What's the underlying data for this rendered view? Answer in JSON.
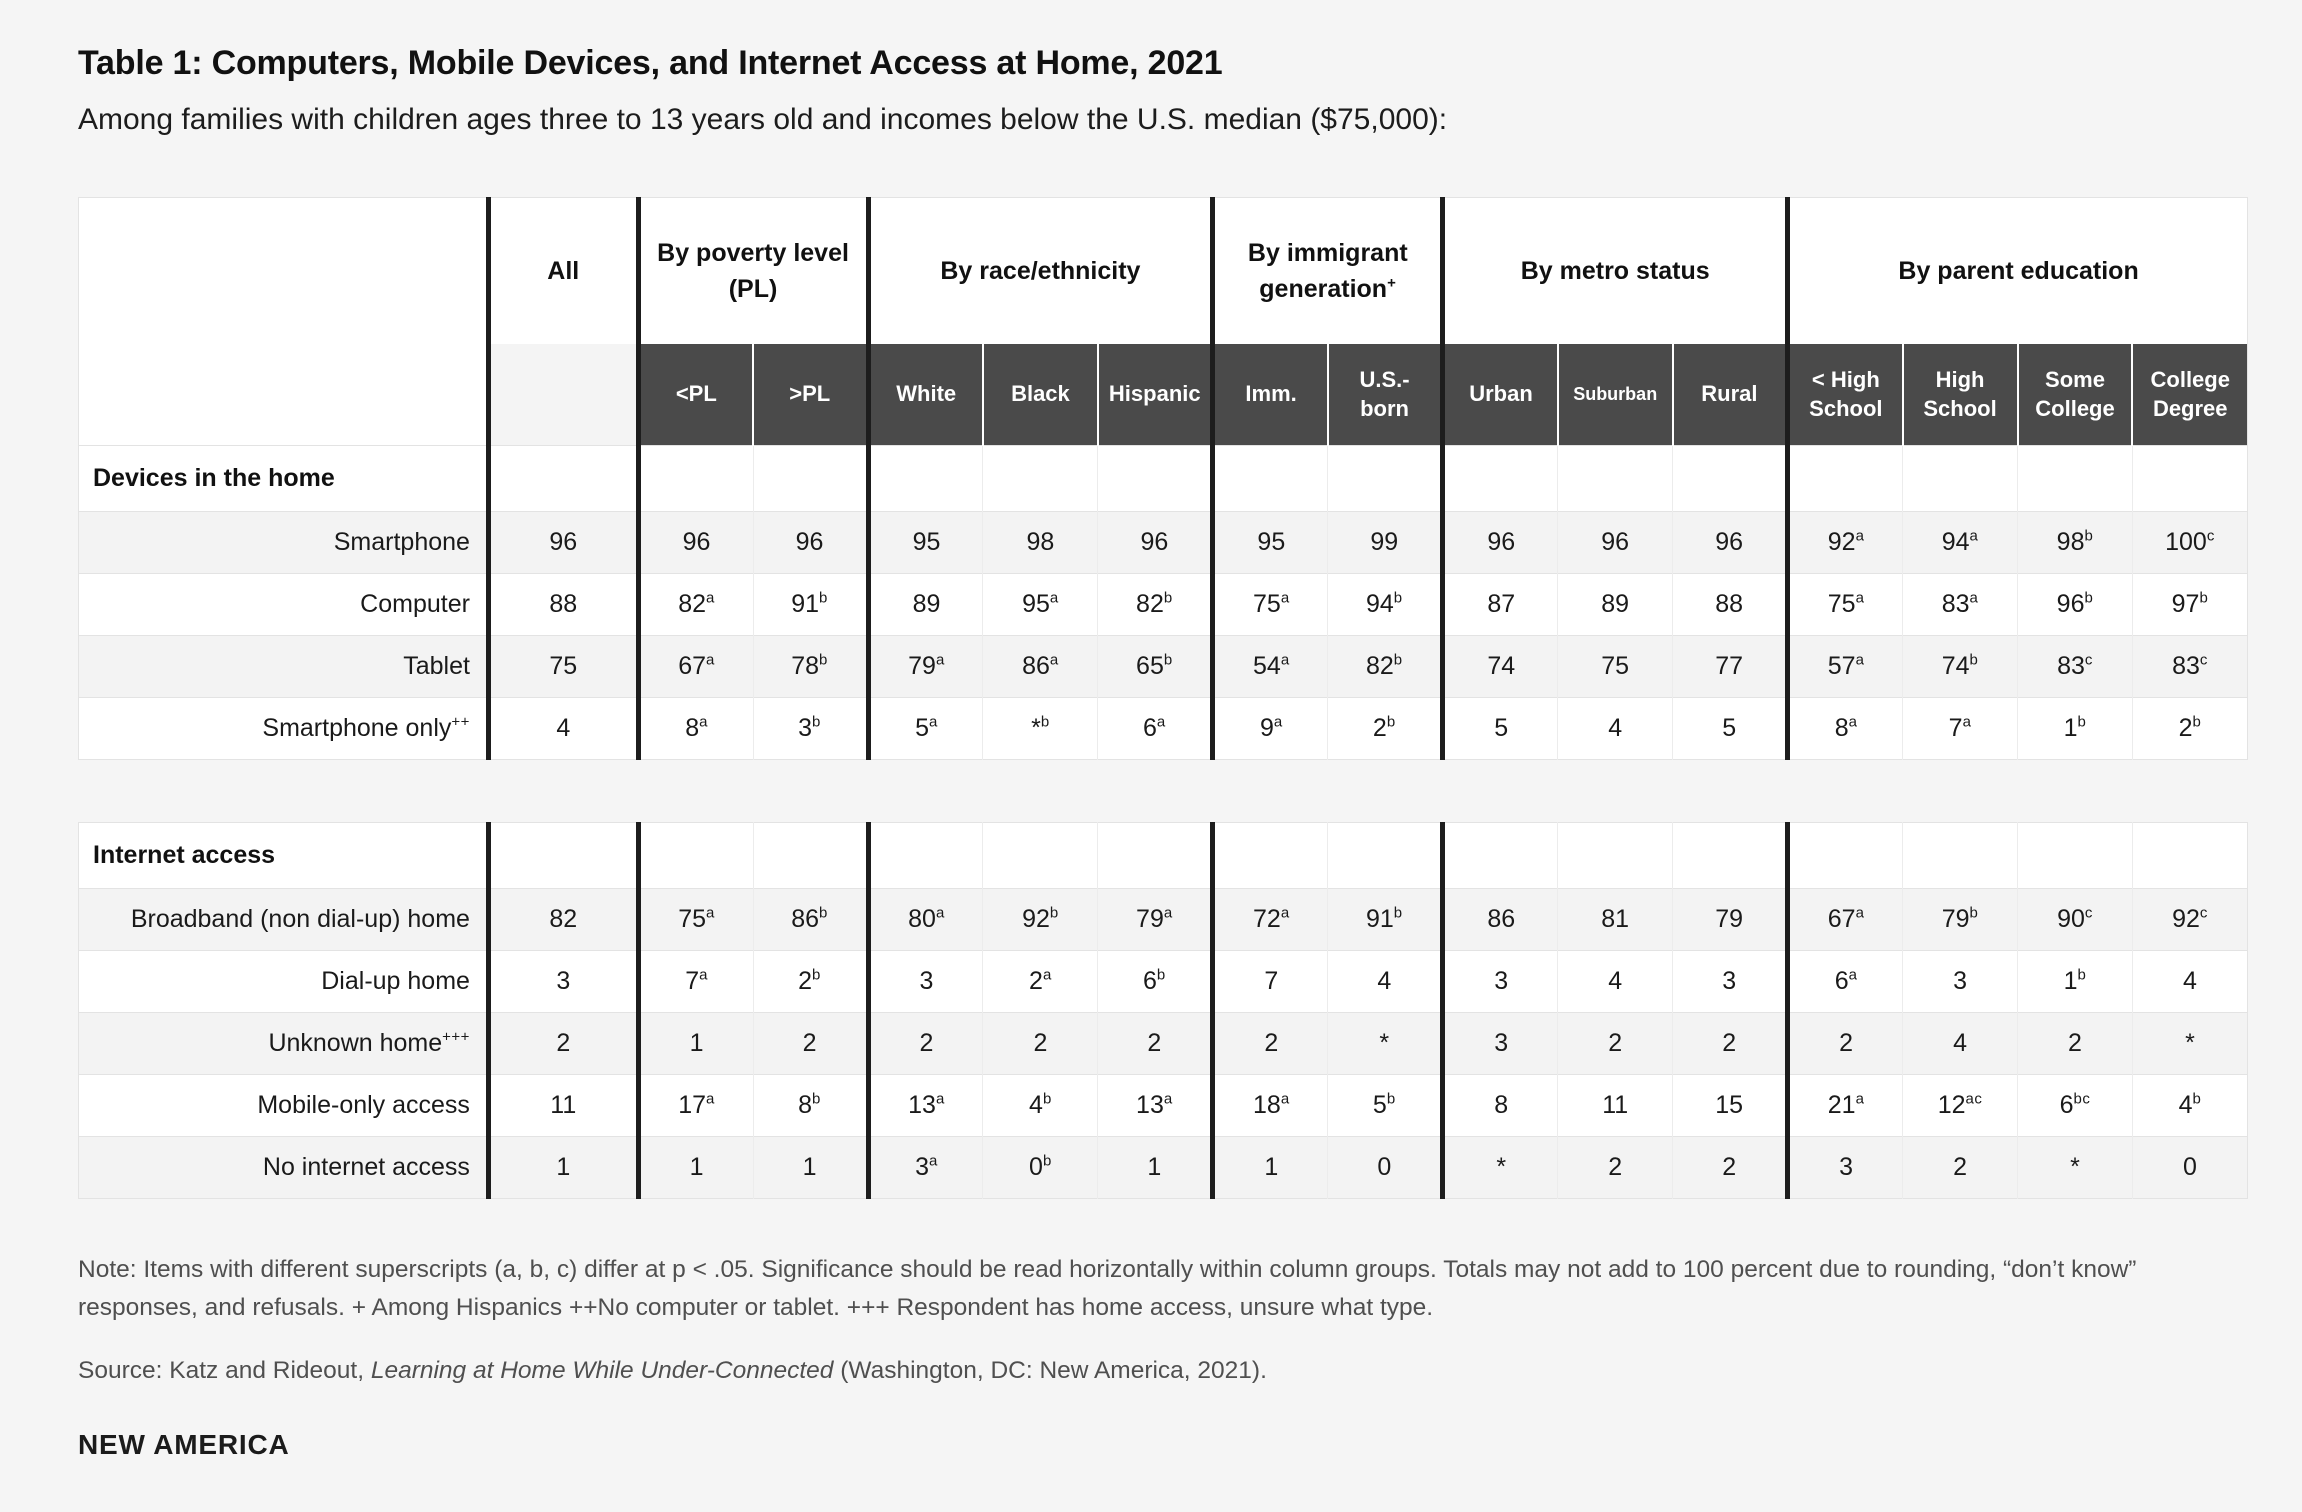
{
  "chart_data": {
    "type": "table",
    "title": "Table 1: Computers, Mobile Devices, and Internet Access at Home, 2021",
    "subtitle": "Among families with children ages three to 13 years old and incomes below the U.S. median ($75,000):",
    "column_groups": [
      {
        "label": "All",
        "span": 1
      },
      {
        "label": "By poverty level (PL)",
        "span": 2
      },
      {
        "label": "By race/ethnicity",
        "span": 3
      },
      {
        "label": "By immigrant generation^+",
        "span": 2
      },
      {
        "label": "By metro status",
        "span": 3
      },
      {
        "label": "By parent education",
        "span": 4
      }
    ],
    "columns": [
      "All",
      "<PL",
      ">PL",
      "White",
      "Black",
      "Hispanic",
      "Imm.",
      "U.S.-born",
      "Urban",
      "Suburban",
      "Rural",
      "< High School",
      "High School",
      "Some College",
      "College Degree"
    ],
    "sections": [
      {
        "name": "Devices in the home",
        "rows": [
          {
            "label": "Smartphone",
            "values": [
              "96",
              "96",
              "96",
              "95",
              "98",
              "96",
              "95",
              "99",
              "96",
              "96",
              "96",
              "92^a",
              "94^a",
              "98^b",
              "100^c"
            ]
          },
          {
            "label": "Computer",
            "values": [
              "88",
              "82^a",
              "91^b",
              "89",
              "95^a",
              "82^b",
              "75^a",
              "94^b",
              "87",
              "89",
              "88",
              "75^a",
              "83^a",
              "96^b",
              "97^b"
            ]
          },
          {
            "label": "Tablet",
            "values": [
              "75",
              "67^a",
              "78^b",
              "79^a",
              "86^a",
              "65^b",
              "54^a",
              "82^b",
              "74",
              "75",
              "77",
              "57^a",
              "74^b",
              "83^c",
              "83^c"
            ]
          },
          {
            "label": "Smartphone only^++",
            "values": [
              "4",
              "8^a",
              "3^b",
              "5^a",
              "*^b",
              "6^a",
              "9^a",
              "2^b",
              "5",
              "4",
              "5",
              "8^a",
              "7^a",
              "1^b",
              "2^b"
            ]
          }
        ]
      },
      {
        "name": "Internet access",
        "rows": [
          {
            "label": "Broadband (non dial-up) home",
            "values": [
              "82",
              "75^a",
              "86^b",
              "80^a",
              "92^b",
              "79^a",
              "72^a",
              "91^b",
              "86",
              "81",
              "79",
              "67^a",
              "79^b",
              "90^c",
              "92^c"
            ]
          },
          {
            "label": "Dial-up home",
            "values": [
              "3",
              "7^a",
              "2^b",
              "3",
              "2^a",
              "6^b",
              "7",
              "4",
              "3",
              "4",
              "3",
              "6^a",
              "3",
              "1^b",
              "4"
            ]
          },
          {
            "label": "Unknown home^+++",
            "values": [
              "2",
              "1",
              "2",
              "2",
              "2",
              "2",
              "2",
              "*",
              "3",
              "2",
              "2",
              "2",
              "4",
              "2",
              "*"
            ]
          },
          {
            "label": "Mobile-only access",
            "values": [
              "11",
              "17^a",
              "8^b",
              "13^a",
              "4^b",
              "13^a",
              "18^a",
              "5^b",
              "8",
              "11",
              "15",
              "21^a",
              "12^ac",
              "6^bc",
              "4^b"
            ]
          },
          {
            "label": "No internet access",
            "values": [
              "1",
              "1",
              "1",
              "3^a",
              "0^b",
              "1",
              "1",
              "0",
              "*",
              "2",
              "2",
              "3",
              "2",
              "*",
              "0"
            ]
          }
        ]
      }
    ],
    "note": "Note: Items with different superscripts (a, b, c) differ at p < .05. Significance should be read horizontally within column groups. Totals may not add to 100 percent due to rounding, “don’t know” responses, and refusals. + Among Hispanics ++No computer or tablet. +++ Respondent has home access, unsure what type.",
    "source": {
      "prefix": "Source: Katz and Rideout, ",
      "italic": "Learning at Home While Under-Connected",
      "suffix": " (Washington, DC: New America, 2021)."
    }
  },
  "footer": {
    "logo": "NEW AMERICA"
  }
}
